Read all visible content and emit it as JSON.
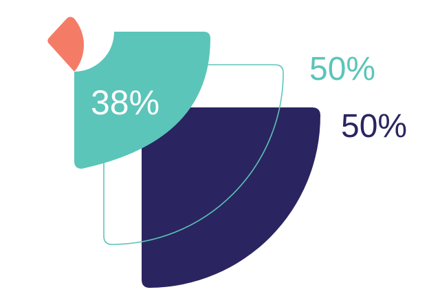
{
  "colors": {
    "teal": "#5BC5B9",
    "navy": "#2A2560",
    "coral": "#F47C67",
    "white": "#FFFFFF"
  },
  "shapes": [
    {
      "name": "navy-quarter-shape",
      "value_percent": 50,
      "color": "navy"
    },
    {
      "name": "teal-outline-quarter-shape",
      "value_percent": 50,
      "color": "teal"
    },
    {
      "name": "teal-quarter-shape",
      "value_percent": 38,
      "color": "teal"
    },
    {
      "name": "coral-wedge-shape",
      "color": "coral"
    }
  ],
  "labels": {
    "teal_inner": "38%",
    "teal_outline": "50%",
    "navy": "50%"
  }
}
